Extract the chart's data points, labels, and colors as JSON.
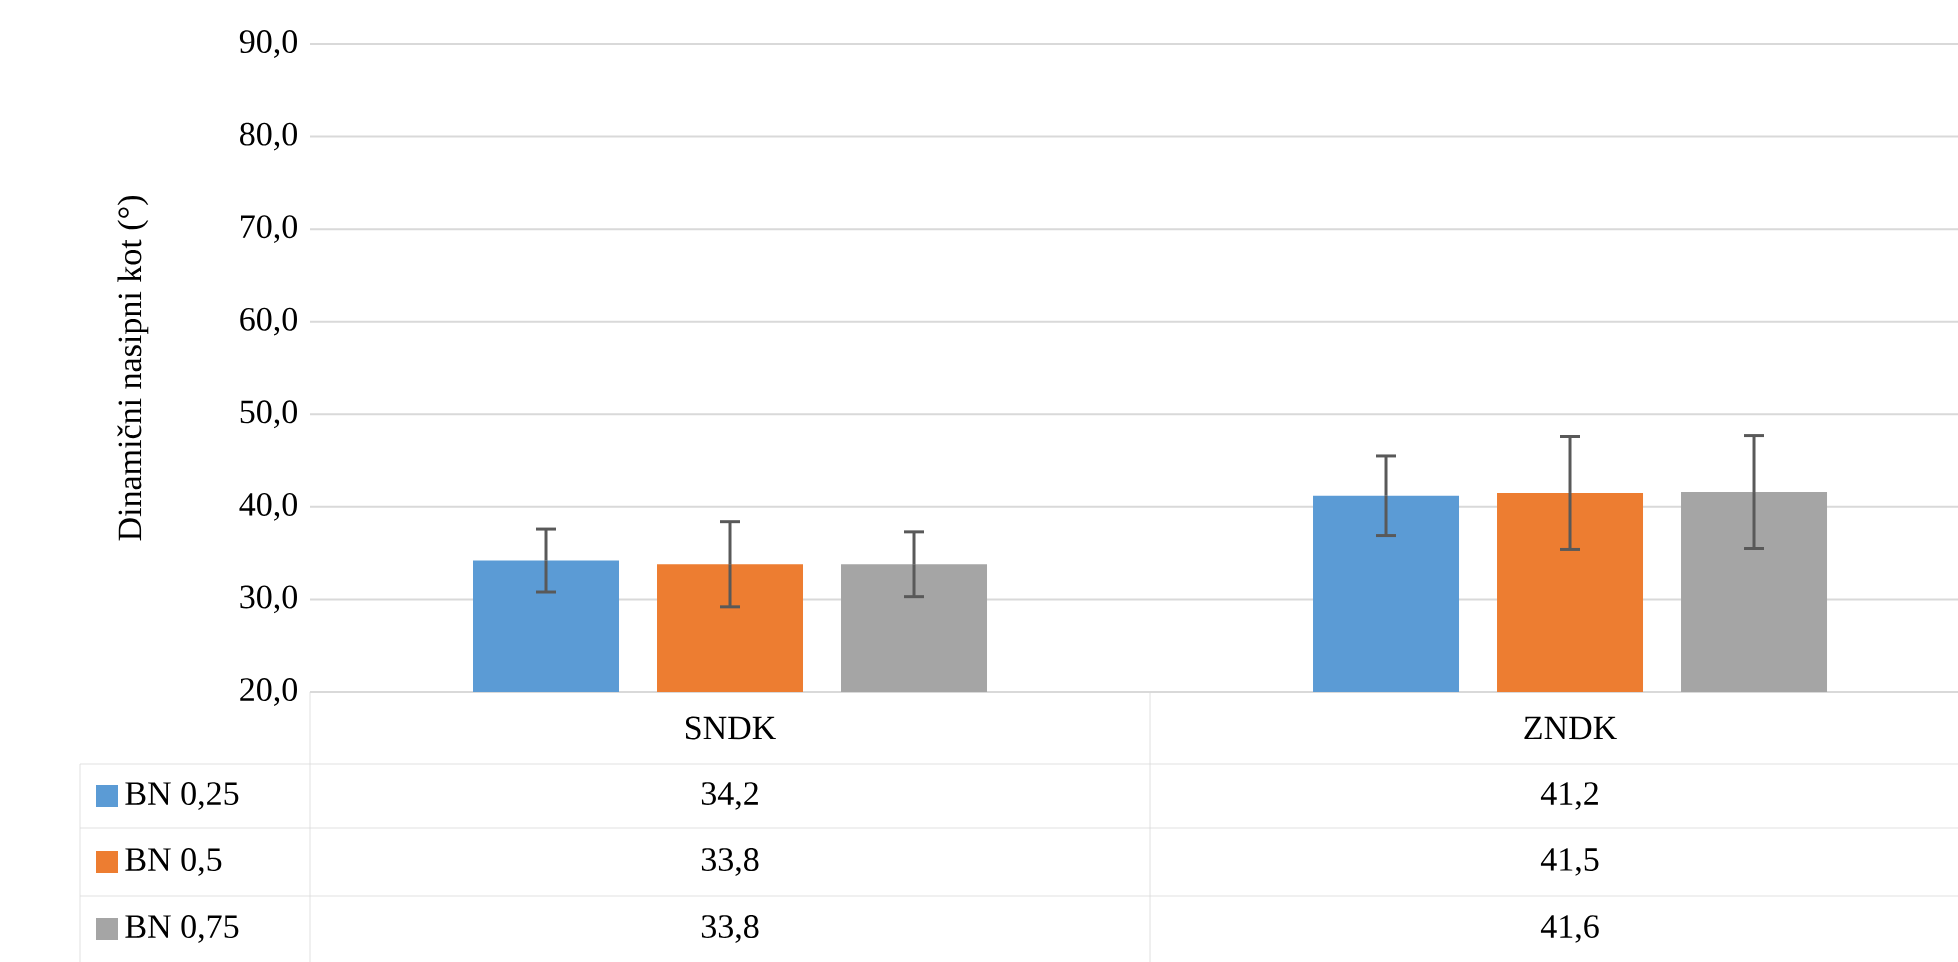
{
  "chart_data": {
    "type": "bar",
    "ylabel": "Dinamični nasipni kot (°)",
    "categories": [
      "SNDK",
      "ZNDK"
    ],
    "series": [
      {
        "name": "BN 0,25",
        "color": "#5b9bd5",
        "values": [
          34.2,
          41.2
        ],
        "errors": [
          3.4,
          4.3
        ],
        "value_labels": [
          "34,2",
          "41,2"
        ]
      },
      {
        "name": "BN 0,5",
        "color": "#ed7d31",
        "values": [
          33.8,
          41.5
        ],
        "errors": [
          4.6,
          6.1
        ],
        "value_labels": [
          "33,8",
          "41,5"
        ]
      },
      {
        "name": "BN 0,75",
        "color": "#a5a5a5",
        "values": [
          33.8,
          41.6
        ],
        "errors": [
          3.5,
          6.1
        ],
        "value_labels": [
          "33,8",
          "41,6"
        ]
      }
    ],
    "ylim": [
      20,
      90
    ],
    "yticks": [
      {
        "value": 20,
        "label": "20,0"
      },
      {
        "value": 30,
        "label": "30,0"
      },
      {
        "value": 40,
        "label": "40,0"
      },
      {
        "value": 50,
        "label": "50,0"
      },
      {
        "value": 60,
        "label": "60,0"
      },
      {
        "value": 70,
        "label": "70,0"
      },
      {
        "value": 80,
        "label": "80,0"
      },
      {
        "value": 90,
        "label": "90,0"
      }
    ],
    "grid": "y",
    "legend": "bottom left"
  }
}
